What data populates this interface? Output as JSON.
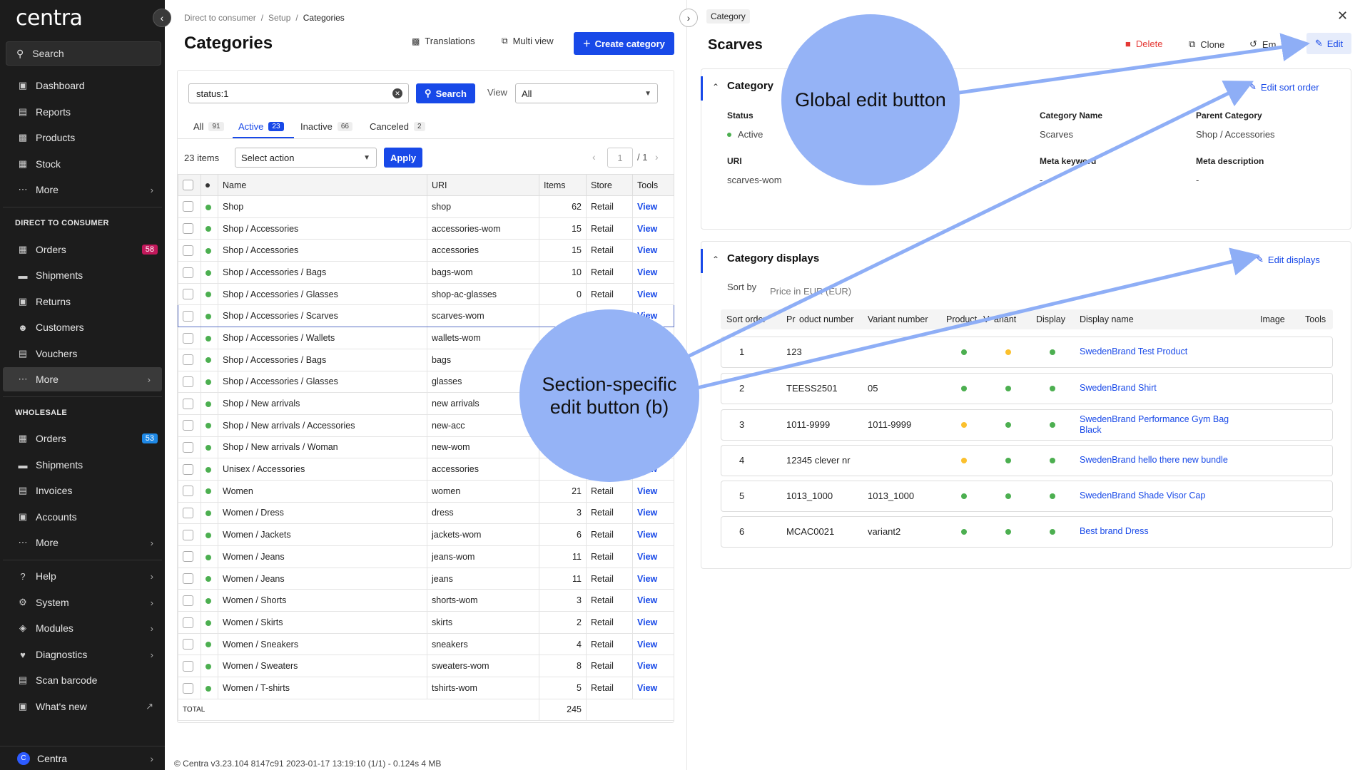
{
  "sidebar": {
    "logo": "centra",
    "search_label": "Search",
    "main_items": [
      {
        "label": "Dashboard",
        "icon": "dashboard-icon"
      },
      {
        "label": "Reports",
        "icon": "reports-icon"
      },
      {
        "label": "Products",
        "icon": "products-icon"
      },
      {
        "label": "Stock",
        "icon": "stock-icon"
      },
      {
        "label": "More",
        "icon": "more-dots-icon"
      }
    ],
    "dtc_section": "DIRECT TO CONSUMER",
    "dtc_items": [
      {
        "label": "Orders",
        "badge": "58"
      },
      {
        "label": "Shipments"
      },
      {
        "label": "Returns"
      },
      {
        "label": "Customers"
      },
      {
        "label": "Vouchers"
      },
      {
        "label": "More"
      }
    ],
    "wholesale_section": "WHOLESALE",
    "wholesale_items": [
      {
        "label": "Orders",
        "badge": "53"
      },
      {
        "label": "Shipments"
      },
      {
        "label": "Invoices"
      },
      {
        "label": "Accounts"
      },
      {
        "label": "More"
      }
    ],
    "system_items": [
      {
        "label": "Help"
      },
      {
        "label": "System"
      },
      {
        "label": "Modules"
      },
      {
        "label": "Diagnostics"
      },
      {
        "label": "Scan barcode"
      },
      {
        "label": "What's new"
      }
    ],
    "footer_letter": "C",
    "footer_label": "Centra",
    "colors": {
      "orders_badge": "#c2185b",
      "wholesale_badge": "#1e88e5",
      "bg": "#1c1c1c"
    }
  },
  "list": {
    "breadcrumb": [
      "Direct to consumer",
      "Setup",
      "Categories"
    ],
    "title": "Categories",
    "translations_label": "Translations",
    "multi_view_label": "Multi view",
    "create_label": "Create category",
    "filter_value": "status:1",
    "search_label": "Search",
    "view_label": "View",
    "view_value": "All",
    "tabs": [
      {
        "label": "All",
        "count": "91"
      },
      {
        "label": "Active",
        "count": "23"
      },
      {
        "label": "Inactive",
        "count": "66"
      },
      {
        "label": "Canceled",
        "count": "2"
      }
    ],
    "items_count": "23 items",
    "action_placeholder": "Select action",
    "apply_label": "Apply",
    "page_current": "1",
    "page_total": "/ 1",
    "columns": [
      "Name",
      "URI",
      "Items",
      "Store",
      "Tools"
    ],
    "rows": [
      {
        "name": "Shop",
        "uri": "shop",
        "items": "62",
        "store": "Retail",
        "tool": "View"
      },
      {
        "name": "Shop / Accessories",
        "uri": "accessories-wom",
        "items": "15",
        "store": "Retail",
        "tool": "View"
      },
      {
        "name": "Shop / Accessories",
        "uri": "accessories",
        "items": "15",
        "store": "Retail",
        "tool": "View"
      },
      {
        "name": "Shop / Accessories / Bags",
        "uri": "bags-wom",
        "items": "10",
        "store": "Retail",
        "tool": "View"
      },
      {
        "name": "Shop / Accessories / Glasses",
        "uri": "shop-ac-glasses",
        "items": "0",
        "store": "Retail",
        "tool": "View"
      },
      {
        "name": "Shop / Accessories / Scarves",
        "uri": "scarves-wom",
        "items": "",
        "store": "",
        "tool": "View"
      },
      {
        "name": "Shop / Accessories / Wallets",
        "uri": "wallets-wom",
        "items": "",
        "store": "",
        "tool": ""
      },
      {
        "name": "Shop / Accessories / Bags",
        "uri": "bags",
        "items": "",
        "store": "",
        "tool": ""
      },
      {
        "name": "Shop / Accessories / Glasses",
        "uri": "glasses",
        "items": "",
        "store": "",
        "tool": ""
      },
      {
        "name": "Shop / New arrivals",
        "uri": "new arrivals",
        "items": "",
        "store": "",
        "tool": ""
      },
      {
        "name": "Shop / New arrivals / Accessories",
        "uri": "new-acc",
        "items": "",
        "store": "",
        "tool": ""
      },
      {
        "name": "Shop / New arrivals / Woman",
        "uri": "new-wom",
        "items": "",
        "store": "",
        "tool": ""
      },
      {
        "name": "Unisex / Accessories",
        "uri": "accessories",
        "items": "",
        "store": "",
        "tool": "View"
      },
      {
        "name": "Women",
        "uri": "women",
        "items": "21",
        "store": "Retail",
        "tool": "View"
      },
      {
        "name": "Women / Dress",
        "uri": "dress",
        "items": "3",
        "store": "Retail",
        "tool": "View"
      },
      {
        "name": "Women / Jackets",
        "uri": "jackets-wom",
        "items": "6",
        "store": "Retail",
        "tool": "View"
      },
      {
        "name": "Women / Jeans",
        "uri": "jeans-wom",
        "items": "11",
        "store": "Retail",
        "tool": "View"
      },
      {
        "name": "Women / Jeans",
        "uri": "jeans",
        "items": "11",
        "store": "Retail",
        "tool": "View"
      },
      {
        "name": "Women / Shorts",
        "uri": "shorts-wom",
        "items": "3",
        "store": "Retail",
        "tool": "View"
      },
      {
        "name": "Women / Skirts",
        "uri": "skirts",
        "items": "2",
        "store": "Retail",
        "tool": "View"
      },
      {
        "name": "Women / Sneakers",
        "uri": "sneakers",
        "items": "4",
        "store": "Retail",
        "tool": "View"
      },
      {
        "name": "Women / Sweaters",
        "uri": "sweaters-wom",
        "items": "8",
        "store": "Retail",
        "tool": "View"
      },
      {
        "name": "Women / T-shirts",
        "uri": "tshirts-wom",
        "items": "5",
        "store": "Retail",
        "tool": "View"
      }
    ],
    "total_label": "TOTAL",
    "total_value": "245",
    "footer": "© Centra v3.23.104 8147c91 2023-01-17 13:19:10 (1/1) - 0.124s 4 MB"
  },
  "detail": {
    "tag": "Category",
    "title": "Scarves",
    "delete_label": "Delete",
    "clone_label": "Clone",
    "email_label": "Em",
    "edit_label": "Edit",
    "category_card": {
      "title": "Category",
      "edit_sort_label": "Edit sort order",
      "status_label": "Status",
      "status_value": "Active",
      "name_label": "Category Name",
      "name_value": "Scarves",
      "parent_label": "Parent Category",
      "parent_value": "Shop / Accessories",
      "uri_label": "URI",
      "uri_value": "scarves-wom",
      "meta_kw_label": "Meta keyword",
      "meta_kw_value": "-",
      "meta_desc_label": "Meta description",
      "meta_desc_value": "-"
    },
    "displays_card": {
      "title": "Category displays",
      "edit_label": "Edit displays",
      "sort_by_label": "Sort by",
      "sort_by_value": "Price in EUR (EUR)",
      "columns": [
        "Sort order",
        "Pr",
        "oduct number",
        "Variant number",
        "Product",
        "V",
        "ariant",
        "Display",
        "Display name",
        "Image",
        "Tools"
      ],
      "rows": [
        {
          "order": "1",
          "product_number": "123",
          "variant_number": "",
          "product": "green",
          "variant": "yellow",
          "display": "green",
          "name": "SwedenBrand Test Product"
        },
        {
          "order": "2",
          "product_number": "TEESS2501",
          "variant_number": "05",
          "product": "green",
          "variant": "green",
          "display": "green",
          "name": "SwedenBrand Shirt"
        },
        {
          "order": "3",
          "product_number": "1011-9999",
          "variant_number": "1011-9999",
          "product": "yellow",
          "variant": "green",
          "display": "green",
          "name": "SwedenBrand Performance Gym Bag Black"
        },
        {
          "order": "4",
          "product_number": "12345 clever nr",
          "variant_number": "",
          "product": "yellow",
          "variant": "green",
          "display": "green",
          "name": "SwedenBrand hello there new bundle"
        },
        {
          "order": "5",
          "product_number": "1013_1000",
          "variant_number": "1013_1000",
          "product": "green",
          "variant": "green",
          "display": "green",
          "name": "SwedenBrand Shade Visor Cap"
        },
        {
          "order": "6",
          "product_number": "MCAC0021",
          "variant_number": "variant2",
          "product": "green",
          "variant": "green",
          "display": "green",
          "name": "Best brand Dress"
        }
      ]
    }
  },
  "annotations": {
    "global_edit": "Global edit button",
    "section_edit_line1": "Section-specific",
    "section_edit_line2": "edit button (b)"
  },
  "colors": {
    "accent": "#1849e8",
    "status_green": "#4caf50",
    "status_yellow": "#fbc02d",
    "delete_red": "#e53935",
    "annotation": "#95b3f6"
  }
}
